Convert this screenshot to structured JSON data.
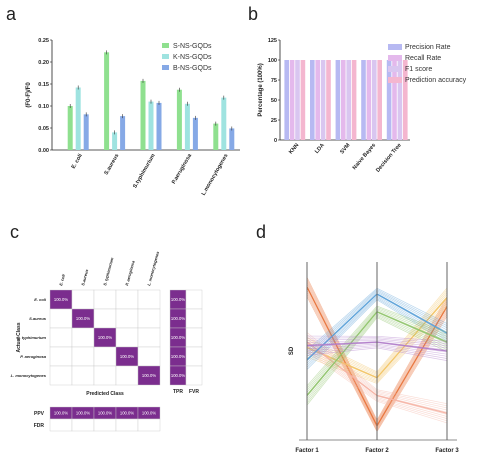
{
  "chart_data": [
    {
      "panel": "a",
      "type": "bar",
      "title": "",
      "xlabel": "",
      "ylabel": "(F0-F)/F0",
      "ylim": [
        0,
        0.25
      ],
      "yticks": [
        "0.00",
        "0.05",
        "0.10",
        "0.15",
        "0.20",
        "0.25"
      ],
      "categories": [
        "E. coli",
        "S.aureus",
        "S.typhimurium",
        "P.aeruginosa",
        "L.monocytogenes"
      ],
      "series": [
        {
          "name": "S-NS-GQDs",
          "color": "#8fe08f",
          "values": [
            0.1,
            0.222,
            0.157,
            0.137,
            0.06
          ]
        },
        {
          "name": "K-NS-GQDs",
          "color": "#9fe3e0",
          "values": [
            0.142,
            0.04,
            0.11,
            0.105,
            0.119
          ]
        },
        {
          "name": "B-NS-GQDs",
          "color": "#86a9e6",
          "values": [
            0.081,
            0.077,
            0.107,
            0.073,
            0.049
          ]
        }
      ],
      "legend": "top-right"
    },
    {
      "panel": "b",
      "type": "bar",
      "title": "",
      "xlabel": "",
      "ylabel": "Percentage (100%)",
      "ylim": [
        0,
        125
      ],
      "yticks": [
        "0",
        "25",
        "50",
        "75",
        "100",
        "125"
      ],
      "categories": [
        "KNN",
        "LDA",
        "SVM",
        "Naive Bayes",
        "Decision Tree"
      ],
      "series": [
        {
          "name": "Precision Rate",
          "color": "#b7b9f2",
          "values": [
            100,
            100,
            100,
            100,
            100
          ]
        },
        {
          "name": "Recall Rate",
          "color": "#e4b9ec",
          "values": [
            100,
            100,
            100,
            100,
            100
          ]
        },
        {
          "name": "F1 score",
          "color": "#d9c6f0",
          "values": [
            100,
            100,
            100,
            100,
            100
          ]
        },
        {
          "name": "Prediction accuracy",
          "color": "#f4b6cf",
          "values": [
            100,
            100,
            100,
            100,
            100
          ]
        }
      ],
      "legend": "top-right"
    },
    {
      "panel": "c",
      "type": "heatmap",
      "title": "",
      "xlabel": "Predicted Class",
      "ylabel": "Actual Class",
      "classes": [
        "E. coli",
        "S.aureus",
        "S. typhimurium",
        "P. aeruginosa",
        "L. monocytogenes"
      ],
      "diagonal_value": "100.0%",
      "tpr_label": "TPR",
      "fvr_label": "FVR",
      "tpr_values": [
        "100.0%",
        "100.0%",
        "100.0%",
        "100.0%",
        "100.0%"
      ],
      "ppv_label": "PPV",
      "fdr_label": "FDR",
      "ppv_values": [
        "100.0%",
        "100.0%",
        "100.0%",
        "100.0%",
        "100.0%"
      ],
      "cell_color": "#7b2d8e"
    },
    {
      "panel": "d",
      "type": "line",
      "title": "",
      "xlabel": "",
      "ylabel": "SD",
      "categories": [
        "Factor 1",
        "Factor 2",
        "Factor 3"
      ],
      "series": [
        {
          "color": "#e8743b",
          "values": [
            0.86,
            0.08,
            0.75
          ]
        },
        {
          "color": "#f2c464",
          "values": [
            0.52,
            0.35,
            0.8
          ]
        },
        {
          "color": "#f5b3a4",
          "values": [
            0.55,
            0.25,
            0.15
          ]
        },
        {
          "color": "#5aa0d8",
          "values": [
            0.45,
            0.82,
            0.6
          ]
        },
        {
          "color": "#8fc46a",
          "values": [
            0.25,
            0.72,
            0.55
          ]
        },
        {
          "color": "#b07cc9",
          "values": [
            0.53,
            0.55,
            0.5
          ]
        }
      ]
    }
  ],
  "panels": {
    "a": "a",
    "b": "b",
    "c": "c",
    "d": "d"
  }
}
